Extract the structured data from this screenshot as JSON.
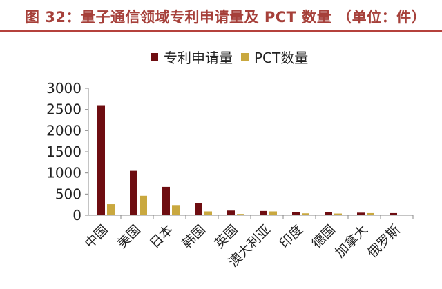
{
  "header": {
    "title": "图 32：量子通信领域专利申请量及 PCT 数量 （单位：件）"
  },
  "colors": {
    "accent": "#a6403a",
    "series_patent": "#6e0d11",
    "series_pct": "#c9a83f"
  },
  "chart_data": {
    "type": "bar",
    "title": "图 32：量子通信领域专利申请量及 PCT 数量 （单位：件）",
    "xlabel": "",
    "ylabel": "",
    "ylim": [
      0,
      3000
    ],
    "yticks": [
      0,
      500,
      1000,
      1500,
      2000,
      2500,
      3000
    ],
    "grid": false,
    "legend_position": "top",
    "categories": [
      "中国",
      "美国",
      "日本",
      "韩国",
      "英国",
      "澳大利亚",
      "印度",
      "德国",
      "加拿大",
      "俄罗斯"
    ],
    "series": [
      {
        "name": "专利申请量",
        "color": "#6e0d11",
        "values": [
          2600,
          1050,
          670,
          280,
          110,
          100,
          70,
          70,
          60,
          50
        ]
      },
      {
        "name": "PCT数量",
        "color": "#c9a83f",
        "values": [
          260,
          460,
          240,
          90,
          30,
          90,
          45,
          40,
          50,
          0
        ]
      }
    ]
  }
}
